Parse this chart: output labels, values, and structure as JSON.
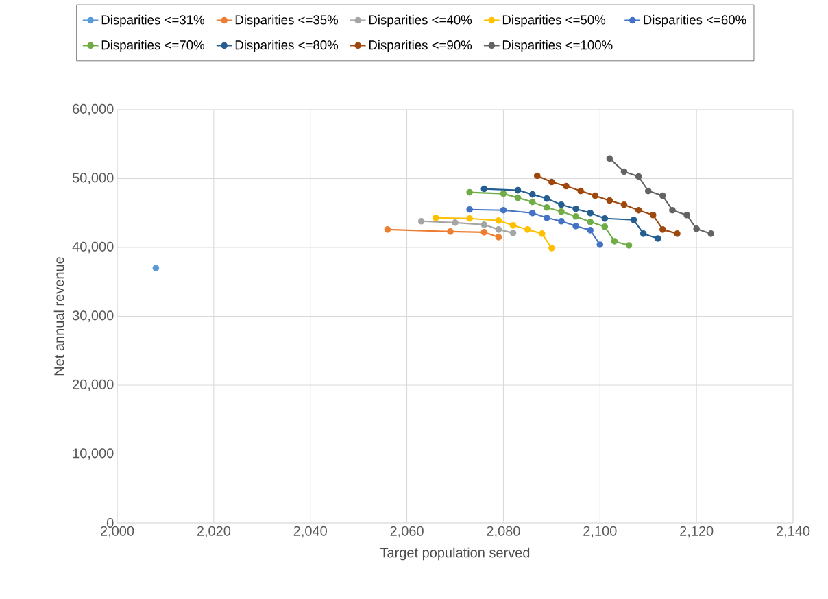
{
  "chart_data": {
    "type": "line",
    "xlabel": "Target population served",
    "ylabel": "Net annual revenue",
    "xlim": [
      2000,
      2140
    ],
    "ylim": [
      0,
      60000
    ],
    "xticks": [
      {
        "value": 2000,
        "label": "2,000"
      },
      {
        "value": 2020,
        "label": "2,020"
      },
      {
        "value": 2040,
        "label": "2,040"
      },
      {
        "value": 2060,
        "label": "2,060"
      },
      {
        "value": 2080,
        "label": "2,080"
      },
      {
        "value": 2100,
        "label": "2,100"
      },
      {
        "value": 2120,
        "label": "2,120"
      },
      {
        "value": 2140,
        "label": "2,140"
      }
    ],
    "yticks": [
      0,
      {
        "value": 10000,
        "label": "10,000"
      },
      {
        "value": 20000,
        "label": "20,000"
      },
      {
        "value": 30000,
        "label": "30,000"
      },
      {
        "value": 40000,
        "label": "40,000"
      },
      {
        "value": 50000,
        "label": "50,000"
      },
      {
        "value": 60000,
        "label": "60,000"
      }
    ],
    "grid": true,
    "legend": "top",
    "marker": "circle",
    "line_style": "solid",
    "series": [
      {
        "name": "Disparities <=31%",
        "color": "#5b9bd5",
        "x": [
          2008
        ],
        "values": [
          37000
        ]
      },
      {
        "name": "Disparities <=35%",
        "color": "#ed7d31",
        "x": [
          2056,
          2069,
          2076,
          2079
        ],
        "values": [
          42600,
          42300,
          42200,
          41500
        ]
      },
      {
        "name": "Disparities <=40%",
        "color": "#a5a5a5",
        "x": [
          2063,
          2070,
          2076,
          2079,
          2082
        ],
        "values": [
          43800,
          43600,
          43300,
          42600,
          42100
        ]
      },
      {
        "name": "Disparities <=50%",
        "color": "#ffc000",
        "x": [
          2066,
          2073,
          2079,
          2082,
          2085,
          2088,
          2090
        ],
        "values": [
          44300,
          44200,
          43900,
          43200,
          42600,
          42000,
          39900
        ]
      },
      {
        "name": "Disparities <=60%",
        "color": "#4472c4",
        "x": [
          2073,
          2080,
          2086,
          2089,
          2092,
          2095,
          2098,
          2100
        ],
        "values": [
          45500,
          45400,
          45000,
          44300,
          43800,
          43100,
          42500,
          40400
        ]
      },
      {
        "name": "Disparities <=70%",
        "color": "#70ad47",
        "x": [
          2073,
          2080,
          2083,
          2086,
          2089,
          2092,
          2095,
          2098,
          2101,
          2103,
          2106
        ],
        "values": [
          48000,
          47800,
          47200,
          46600,
          45800,
          45200,
          44500,
          43700,
          43000,
          40900,
          40300
        ]
      },
      {
        "name": "Disparities <=80%",
        "color": "#255e91",
        "x": [
          2076,
          2083,
          2086,
          2089,
          2092,
          2095,
          2098,
          2101,
          2107,
          2109,
          2112
        ],
        "values": [
          48500,
          48300,
          47700,
          47100,
          46200,
          45600,
          45000,
          44200,
          44000,
          42000,
          41300
        ]
      },
      {
        "name": "Disparities <=90%",
        "color": "#9e480e",
        "x": [
          2087,
          2090,
          2093,
          2096,
          2099,
          2102,
          2105,
          2108,
          2111,
          2113,
          2116
        ],
        "values": [
          50400,
          49500,
          48900,
          48200,
          47500,
          46800,
          46200,
          45400,
          44700,
          42600,
          42000
        ]
      },
      {
        "name": "Disparities <=100%",
        "color": "#636363",
        "x": [
          2102,
          2105,
          2108,
          2110,
          2113,
          2115,
          2118,
          2120,
          2123
        ],
        "values": [
          52900,
          51000,
          50300,
          48200,
          47500,
          45400,
          44700,
          42700,
          42000
        ]
      }
    ]
  }
}
